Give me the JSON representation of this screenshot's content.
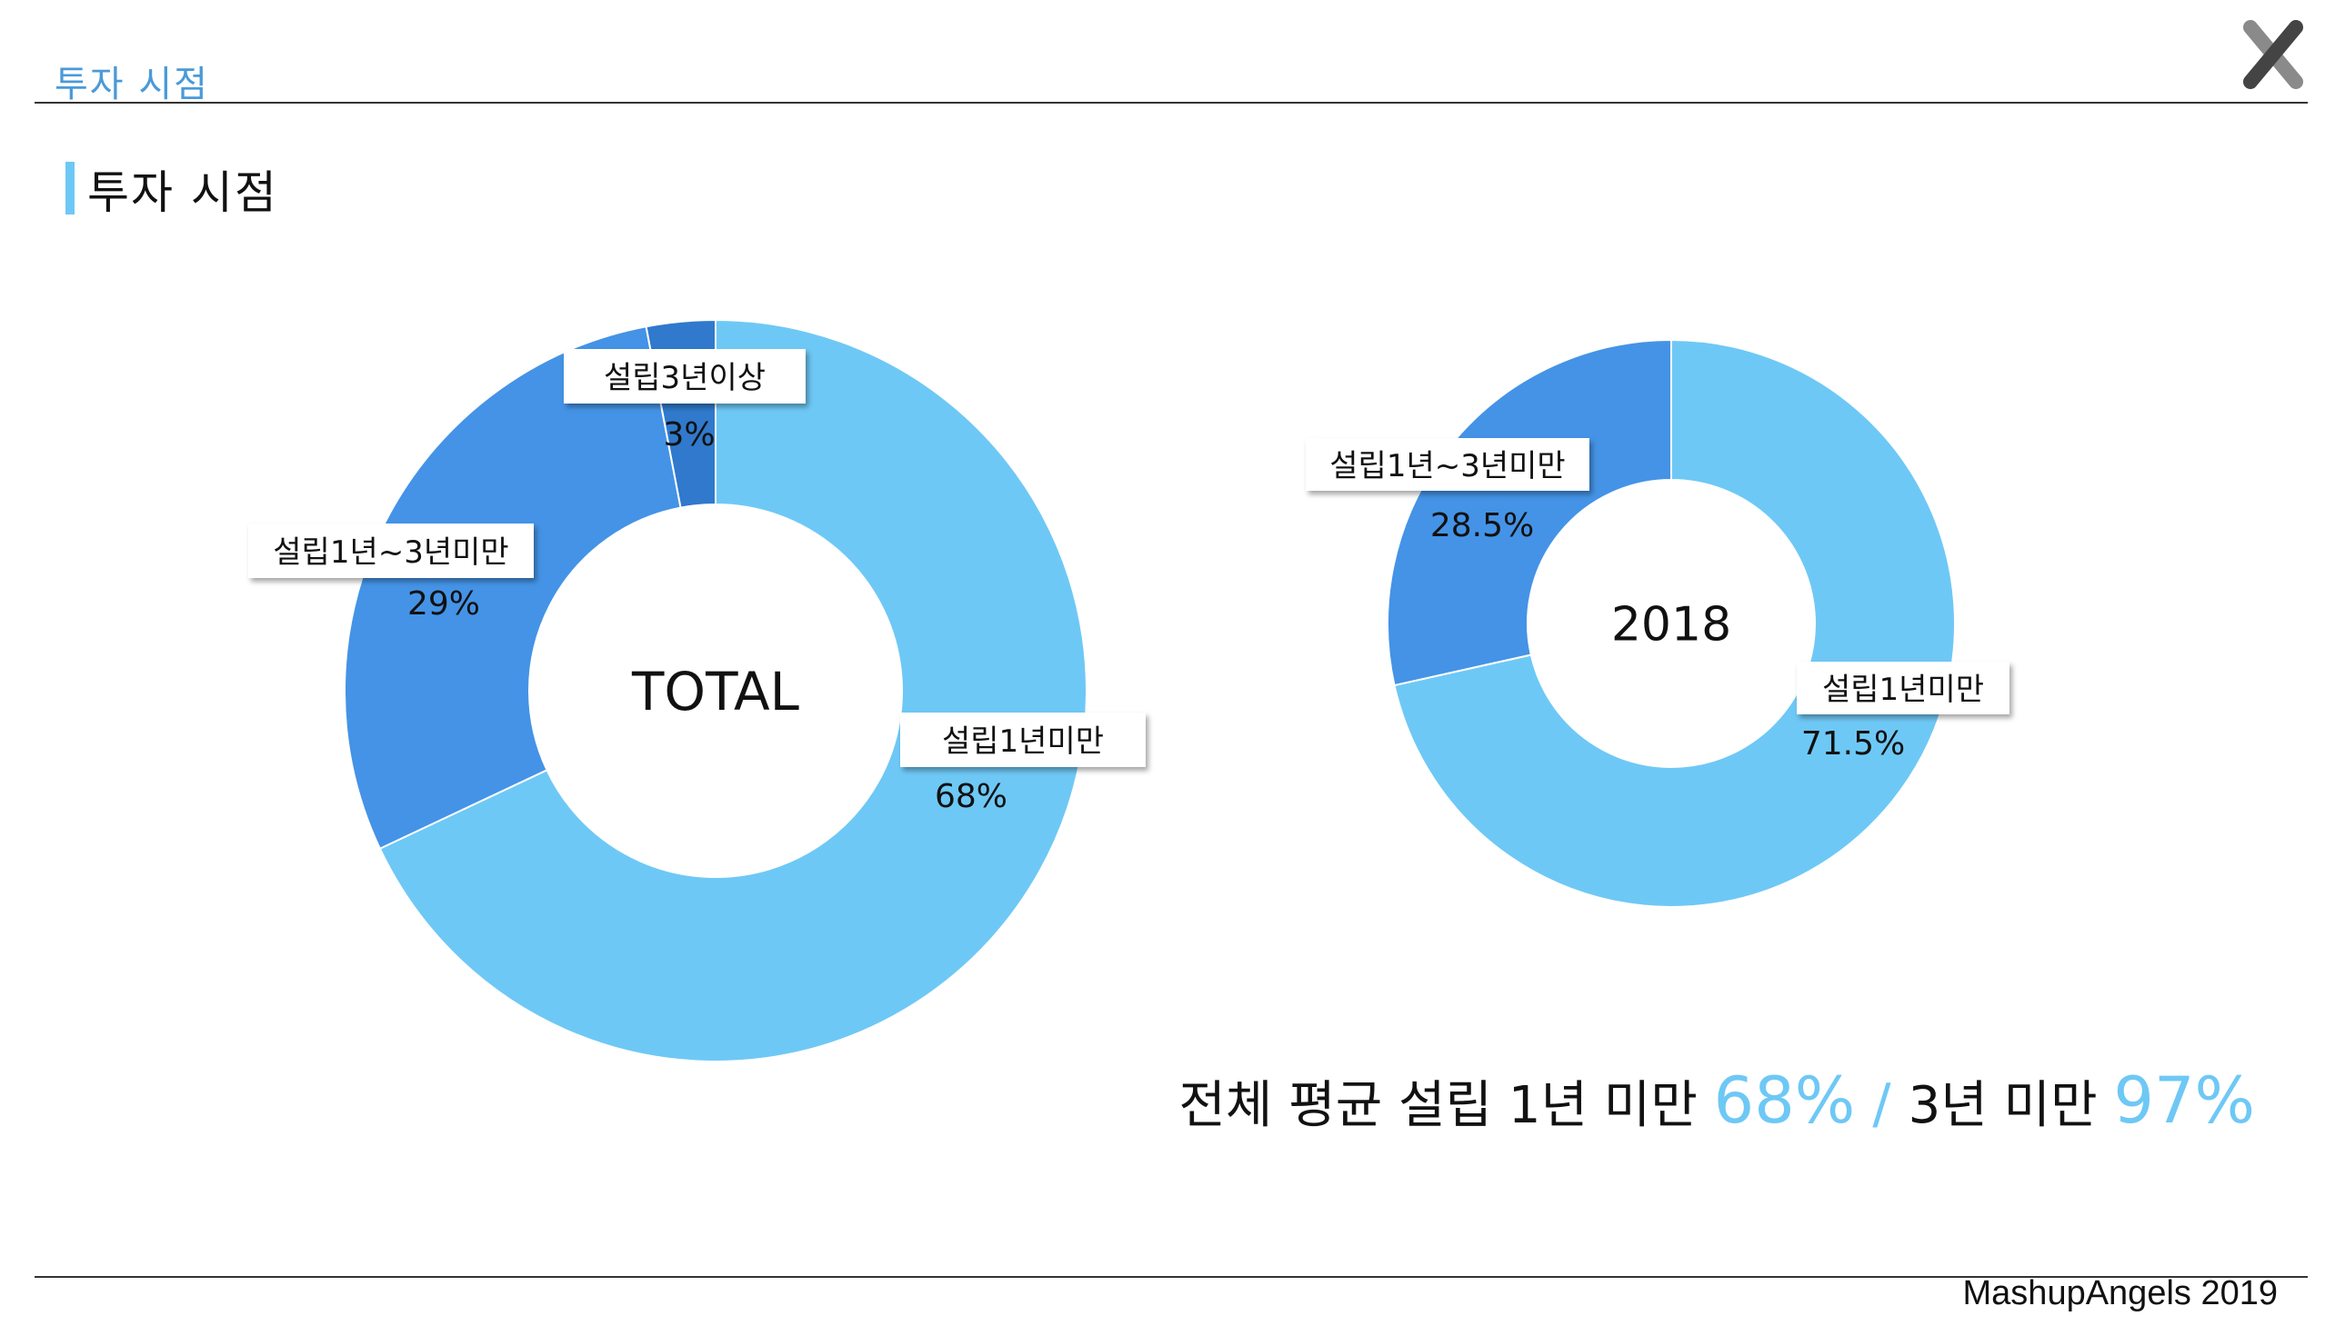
{
  "header": {
    "title": "투자 시점"
  },
  "section": {
    "title": "투자 시점"
  },
  "colors": {
    "light": "#6ec8f5",
    "mid": "#4493e6",
    "dark": "#3079cc",
    "accent": "#6ec8f5"
  },
  "chart_data": [
    {
      "type": "pie",
      "variant": "donut",
      "center_label": "TOTAL",
      "slices": [
        {
          "label": "설립1년미만",
          "value": 68,
          "value_label": "68%",
          "color": "#6ec8f5"
        },
        {
          "label": "설립1년~3년미만",
          "value": 29,
          "value_label": "29%",
          "color": "#4493e6"
        },
        {
          "label": "설립3년이상",
          "value": 3,
          "value_label": "3%",
          "color": "#3079cc"
        }
      ]
    },
    {
      "type": "pie",
      "variant": "donut",
      "center_label": "2018",
      "slices": [
        {
          "label": "설립1년미만",
          "value": 71.5,
          "value_label": "71.5%",
          "color": "#6ec8f5"
        },
        {
          "label": "설립1년~3년미만",
          "value": 28.5,
          "value_label": "28.5%",
          "color": "#4493e6"
        }
      ]
    }
  ],
  "summary": {
    "prefix": "전체 평균 설립 1년 미만 ",
    "value1": "68%",
    "slash": " / ",
    "middle": "3년 미만 ",
    "value2": "97%"
  },
  "footer": {
    "brand": "MashupAngels 2019"
  }
}
